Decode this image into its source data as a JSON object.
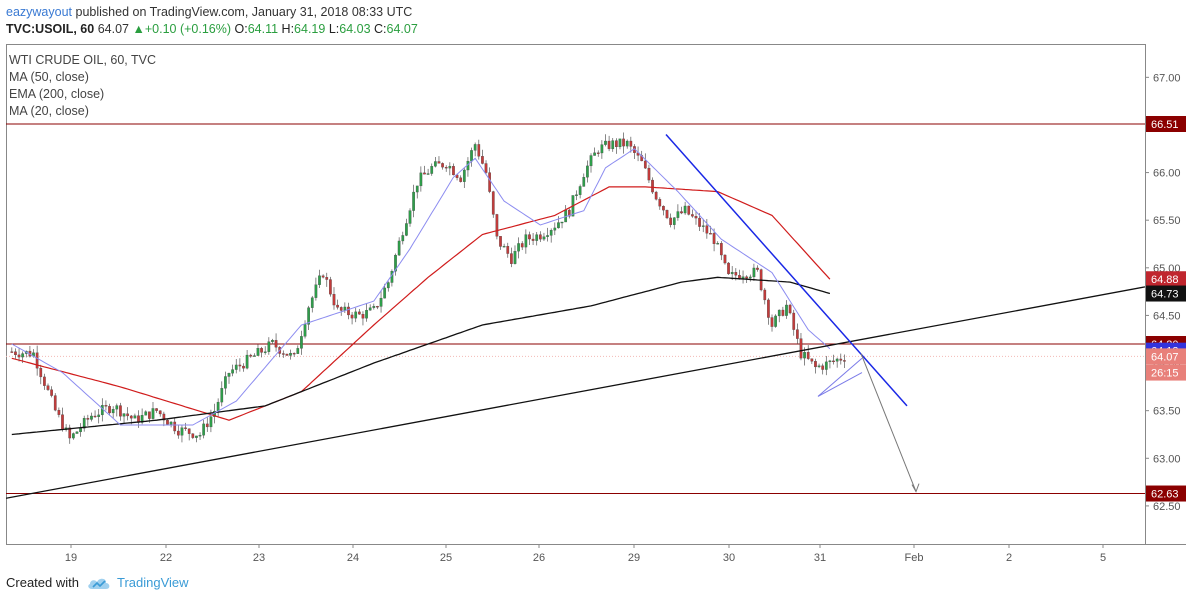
{
  "header": {
    "author": "eazywayout",
    "published_text": "published on TradingView.com, January 31, 2018 08:33 UTC",
    "symbol": "TVC:USOIL, 60",
    "last": "64.07",
    "change": "+0.10 (+0.16%)",
    "open_label": "O:",
    "open": "64.11",
    "high_label": "H:",
    "high": "64.19",
    "low_label": "L:",
    "low": "64.03",
    "close_label": "C:",
    "close": "64.07"
  },
  "legend": {
    "title": "WTI CRUDE OIL, 60, TVC",
    "ind1": "MA (50, close)",
    "ind2": "EMA (200, close)",
    "ind3": "MA (20, close)"
  },
  "footer": {
    "created_with": "Created with",
    "brand": "TradingView"
  },
  "colors": {
    "up": "#2e9e4a",
    "down": "#c23b3b",
    "ma50": "#d01c1c",
    "ema200": "#111111",
    "ma20": "#8c8cf0",
    "trend_blue": "#1a28e6",
    "horizontal_red": "#8b0000"
  },
  "chart_data": {
    "type": "candlestick",
    "title": "WTI CRUDE OIL, 60, TVC",
    "ylim": [
      62.1,
      67.35
    ],
    "y_ticks": [
      "67.00",
      "66.50",
      "66.00",
      "65.50",
      "65.00",
      "64.50",
      "64.00",
      "63.50",
      "63.00",
      "62.50"
    ],
    "x_ticks": [
      "19",
      "22",
      "23",
      "24",
      "25",
      "26",
      "29",
      "30",
      "31",
      "Feb",
      "2",
      "5"
    ],
    "price_labels": [
      {
        "text": "66.51",
        "value": 66.51,
        "bg": "#8b0000",
        "color": "#ffffff"
      },
      {
        "text": "64.88",
        "value": 64.88,
        "bg": "#c0262e",
        "color": "#ffffff"
      },
      {
        "text": "64.73",
        "value": 64.73,
        "bg": "#111111",
        "color": "#ffffff"
      },
      {
        "text": "64.20",
        "value": 64.2,
        "bg": "#8b0000",
        "color": "#ffffff"
      },
      {
        "text": "64.13",
        "value": 64.13,
        "bg": "#3333dd",
        "color": "#ffffff"
      },
      {
        "text": "64.07",
        "value": 64.07,
        "bg": "#e8807a",
        "color": "#ffffff"
      },
      {
        "text": "26:15",
        "value": 63.9,
        "bg": "#e8807a",
        "color": "#ffffff"
      },
      {
        "text": "62.63",
        "value": 62.63,
        "bg": "#8b0000",
        "color": "#ffffff"
      }
    ],
    "horizontal_levels": [
      66.51,
      64.2,
      62.63
    ],
    "anchors": [
      [
        0,
        64.12
      ],
      [
        6,
        64.1
      ],
      [
        12,
        63.5
      ],
      [
        16,
        63.2
      ],
      [
        22,
        63.45
      ],
      [
        28,
        63.55
      ],
      [
        34,
        63.4
      ],
      [
        40,
        63.5
      ],
      [
        46,
        63.3
      ],
      [
        52,
        63.25
      ],
      [
        56,
        63.5
      ],
      [
        60,
        63.9
      ],
      [
        66,
        64.05
      ],
      [
        72,
        64.2
      ],
      [
        78,
        64.05
      ],
      [
        82,
        64.6
      ],
      [
        86,
        64.95
      ],
      [
        90,
        64.55
      ],
      [
        96,
        64.5
      ],
      [
        100,
        64.55
      ],
      [
        104,
        64.85
      ],
      [
        108,
        65.4
      ],
      [
        112,
        65.9
      ],
      [
        116,
        66.05
      ],
      [
        120,
        66.1
      ],
      [
        124,
        65.95
      ],
      [
        128,
        66.3
      ],
      [
        131,
        66.0
      ],
      [
        134,
        65.3
      ],
      [
        138,
        65.1
      ],
      [
        142,
        65.3
      ],
      [
        146,
        65.35
      ],
      [
        150,
        65.45
      ],
      [
        154,
        65.6
      ],
      [
        158,
        66.0
      ],
      [
        162,
        66.25
      ],
      [
        166,
        66.3
      ],
      [
        170,
        66.3
      ],
      [
        174,
        66.1
      ],
      [
        178,
        65.75
      ],
      [
        182,
        65.5
      ],
      [
        186,
        65.6
      ],
      [
        190,
        65.45
      ],
      [
        194,
        65.3
      ],
      [
        198,
        64.9
      ],
      [
        202,
        64.95
      ],
      [
        206,
        64.95
      ],
      [
        210,
        64.4
      ],
      [
        214,
        64.6
      ],
      [
        218,
        64.1
      ],
      [
        222,
        63.95
      ],
      [
        226,
        64.0
      ],
      [
        230,
        64.07
      ]
    ],
    "ma50_anchors": [
      [
        0,
        64.05
      ],
      [
        30,
        63.75
      ],
      [
        60,
        63.4
      ],
      [
        80,
        63.7
      ],
      [
        100,
        64.4
      ],
      [
        115,
        64.9
      ],
      [
        130,
        65.35
      ],
      [
        150,
        65.55
      ],
      [
        165,
        65.85
      ],
      [
        175,
        65.85
      ],
      [
        195,
        65.8
      ],
      [
        210,
        65.55
      ],
      [
        226,
        64.88
      ]
    ],
    "ema200_anchors": [
      [
        0,
        63.25
      ],
      [
        40,
        63.4
      ],
      [
        70,
        63.55
      ],
      [
        100,
        64.0
      ],
      [
        130,
        64.4
      ],
      [
        160,
        64.6
      ],
      [
        185,
        64.85
      ],
      [
        195,
        64.9
      ],
      [
        215,
        64.85
      ],
      [
        226,
        64.73
      ]
    ],
    "ma20_anchors": [
      [
        0,
        64.2
      ],
      [
        14,
        63.9
      ],
      [
        30,
        63.35
      ],
      [
        50,
        63.35
      ],
      [
        62,
        63.6
      ],
      [
        80,
        64.4
      ],
      [
        100,
        64.65
      ],
      [
        110,
        65.2
      ],
      [
        122,
        65.95
      ],
      [
        128,
        66.15
      ],
      [
        136,
        65.7
      ],
      [
        146,
        65.45
      ],
      [
        158,
        65.6
      ],
      [
        164,
        66.05
      ],
      [
        172,
        66.25
      ],
      [
        184,
        65.8
      ],
      [
        196,
        65.3
      ],
      [
        210,
        64.95
      ],
      [
        220,
        64.35
      ],
      [
        226,
        64.15
      ]
    ],
    "trendlines": [
      {
        "name": "black-support",
        "color": "#111111",
        "width": 1.3,
        "p1": [
          0,
          62.58
        ],
        "p2": [
          1139,
          64.8
        ]
      },
      {
        "name": "blue-resistance",
        "color": "#1a28e6",
        "width": 1.5,
        "p1": [
          660,
          66.4
        ],
        "p2": [
          901,
          63.55
        ]
      },
      {
        "name": "blue-wedge-upper",
        "color": "#7a7ae8",
        "width": 1,
        "p1": [
          812,
          63.65
        ],
        "p2": [
          856,
          64.05
        ]
      },
      {
        "name": "blue-wedge-lower",
        "color": "#7a7ae8",
        "width": 1,
        "p1": [
          812,
          63.65
        ],
        "p2": [
          856,
          63.9
        ]
      }
    ],
    "projection": [
      [
        855,
        64.1
      ],
      [
        910,
        62.65
      ]
    ]
  }
}
